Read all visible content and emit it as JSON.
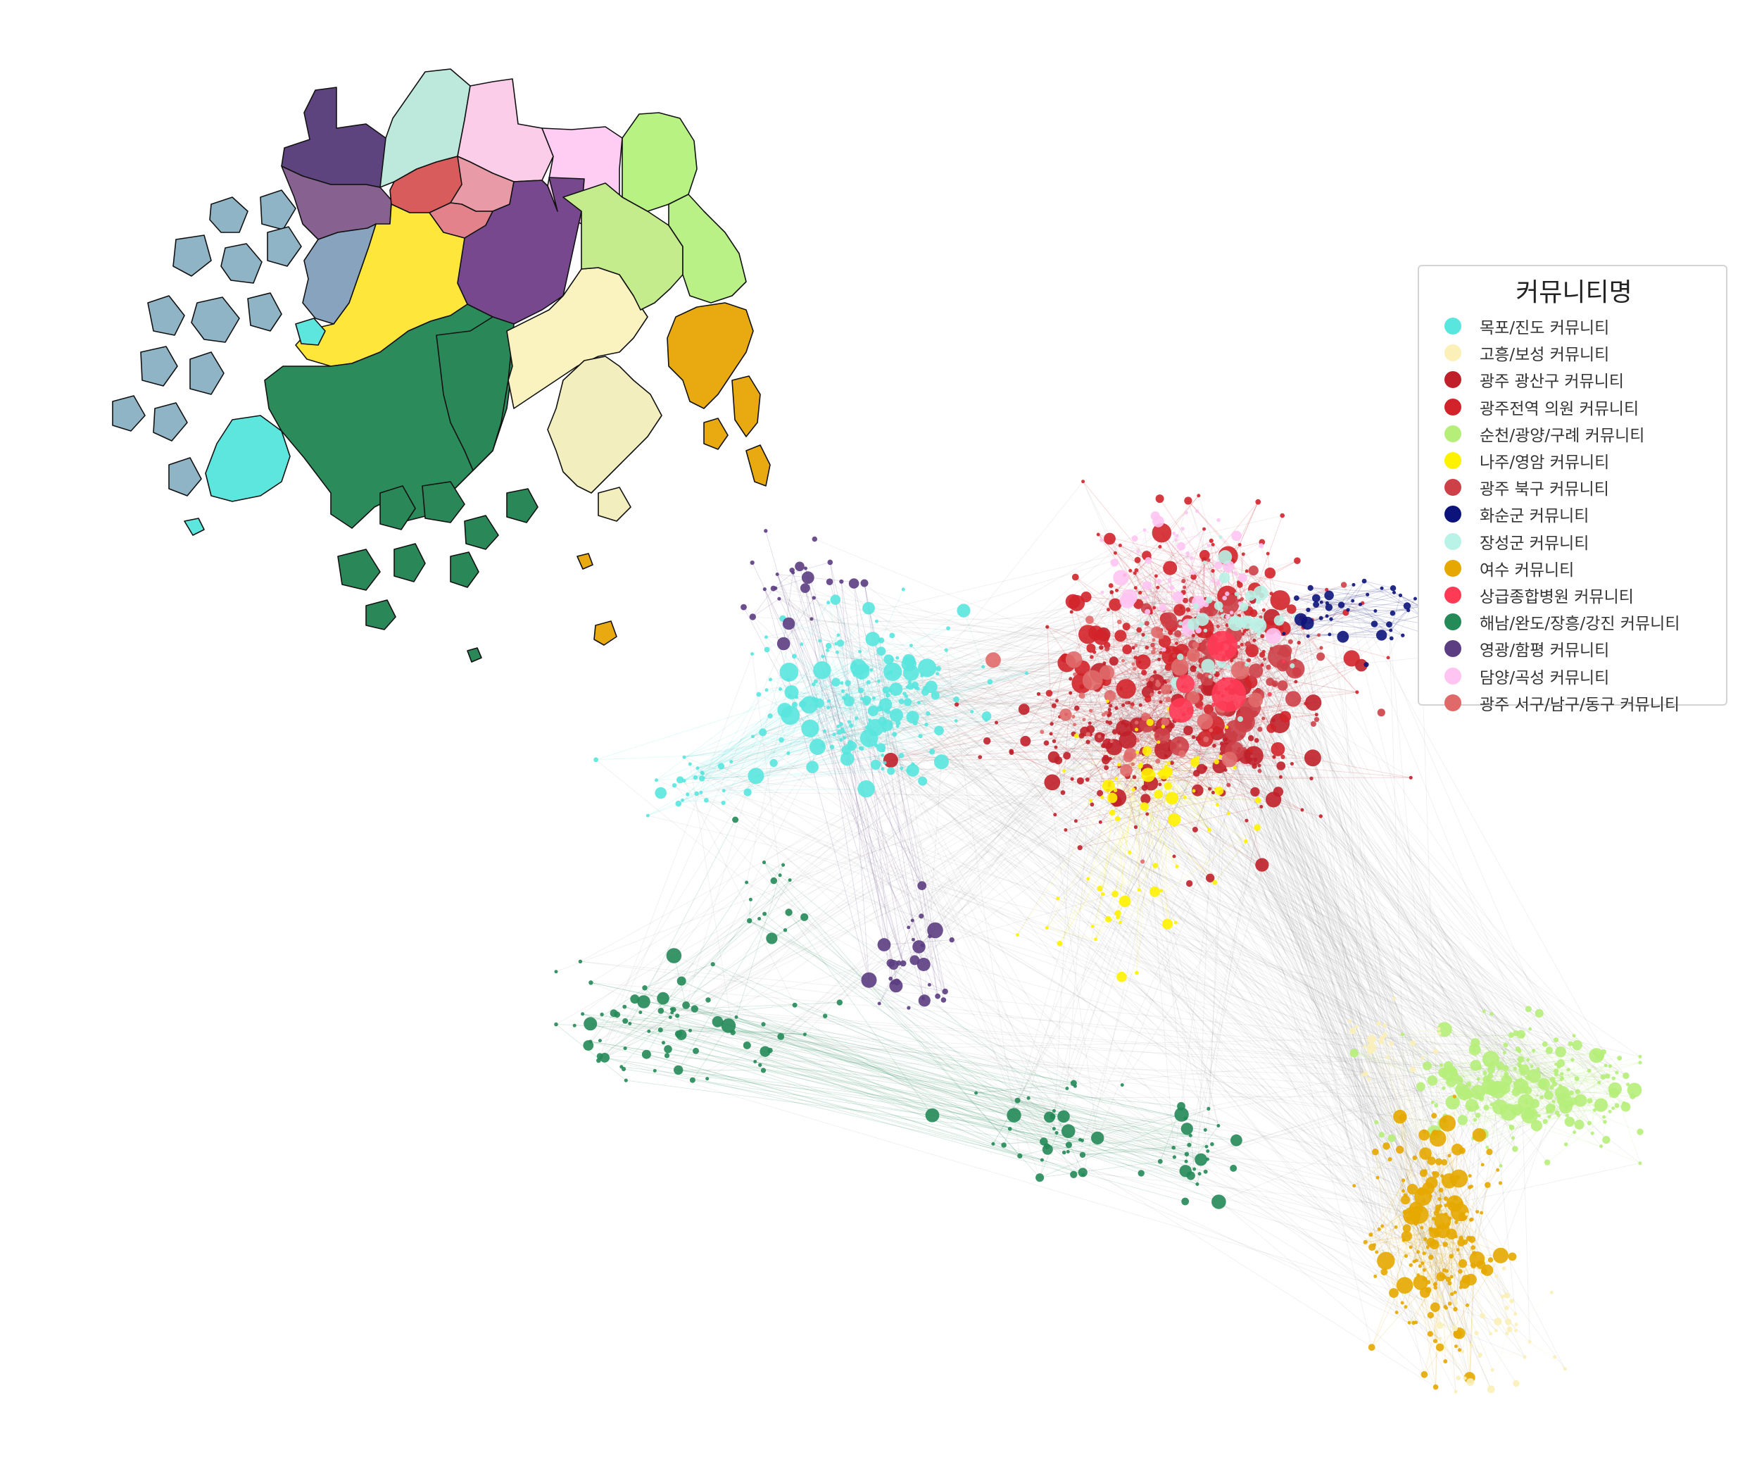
{
  "legend": {
    "title": "커뮤니티명",
    "items": [
      {
        "label": "목포/진도 커뮤니티",
        "color": "#59e6df",
        "key": "mokpo"
      },
      {
        "label": "고흥/보성 커뮤니티",
        "color": "#fbf0b8",
        "key": "goheung"
      },
      {
        "label": "광주 광산구 커뮤니티",
        "color": "#c0202a",
        "key": "gwangsan"
      },
      {
        "label": "광주전역 의원 커뮤니티",
        "color": "#d2232a",
        "key": "gwangju_all"
      },
      {
        "label": "순천/광양/구례 커뮤니티",
        "color": "#b6ee7a",
        "key": "suncheon"
      },
      {
        "label": "나주/영암 커뮤니티",
        "color": "#fff200",
        "key": "naju"
      },
      {
        "label": "광주 북구 커뮤니티",
        "color": "#cd4048",
        "key": "bukgu"
      },
      {
        "label": "화순군 커뮤니티",
        "color": "#0c137a",
        "key": "hwasun"
      },
      {
        "label": "장성군 커뮤니티",
        "color": "#b9f2e6",
        "key": "jangseong"
      },
      {
        "label": "여수 커뮤니티",
        "color": "#e6a800",
        "key": "yeosu"
      },
      {
        "label": "상급종합병원 커뮤니티",
        "color": "#ff3a55",
        "key": "tertiary"
      },
      {
        "label": "해남/완도/장흥/강진 커뮤니티",
        "color": "#248a58",
        "key": "haenam"
      },
      {
        "label": "영광/함평 커뮤니티",
        "color": "#5c3d82",
        "key": "yeonggwang"
      },
      {
        "label": "담양/곡성 커뮤니티",
        "color": "#ffc4f2",
        "key": "damyang"
      },
      {
        "label": "광주 서구/남구/동구 커뮤니티",
        "color": "#e06a6a",
        "key": "seogu"
      }
    ]
  }
}
